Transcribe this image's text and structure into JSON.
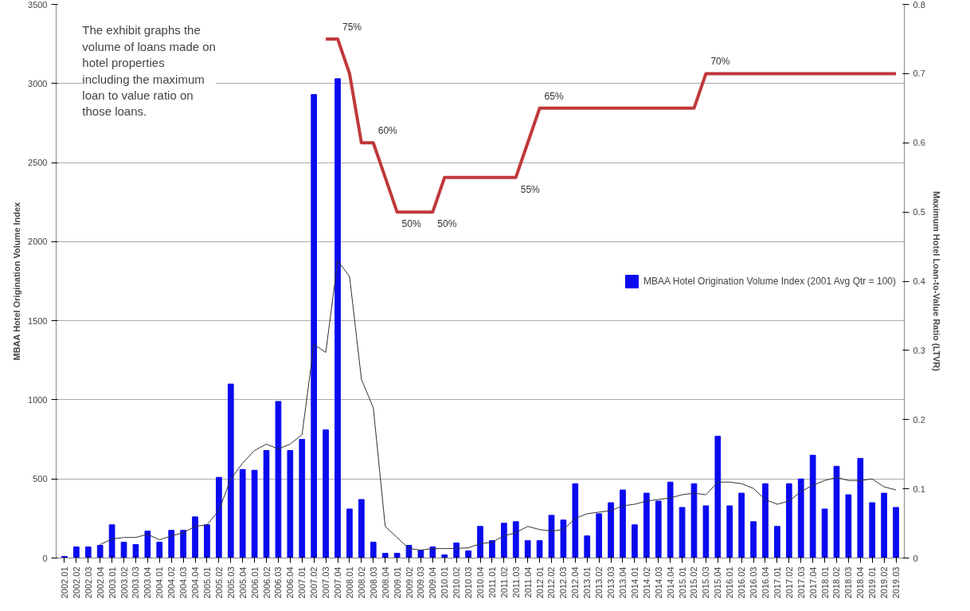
{
  "chart_data": {
    "type": "bar",
    "ylabel": "MBAA Hotel Origination Volume Index",
    "y2label": "Maximum Hotel Loan-to-Value Ratio (LTVR)",
    "categories": [
      "2002.01",
      "2002.02",
      "2002.03",
      "2002.04",
      "2003.01",
      "2003.02",
      "2003.03",
      "2003.04",
      "2004.01",
      "2004.02",
      "2004.03",
      "2004.04",
      "2005.01",
      "2005.02",
      "2005.03",
      "2005.04",
      "2006.01",
      "2006.02",
      "2006.03",
      "2006.04",
      "2007.01",
      "2007.02",
      "2007.03",
      "2007.04",
      "2008.01",
      "2008.02",
      "2008.03",
      "2008.04",
      "2009.01",
      "2009.02",
      "2009.03",
      "2009.04",
      "2010.01",
      "2010.02",
      "2010.03",
      "2010.04",
      "2011.01",
      "2011.02",
      "2011.03",
      "2011.04",
      "2012.01",
      "2012.02",
      "2012.03",
      "2012.04",
      "2013.01",
      "2013.02",
      "2013.03",
      "2013.04",
      "2014.01",
      "2014.02",
      "2014.03",
      "2014.04",
      "2015.01",
      "2015.02",
      "2015.03",
      "2015.04",
      "2016.01",
      "2016.02",
      "2016.03",
      "2016.04",
      "2017.01",
      "2017.02",
      "2017.03",
      "2017.04",
      "2018.01",
      "2018.02",
      "2018.03",
      "2018.04",
      "2019.01",
      "2019.02",
      "2019.03"
    ],
    "series": [
      {
        "name": "MBAA Hotel Origination Volume Index (2001 Avg Qtr = 100)",
        "color": "#0a0af0",
        "values": [
          10,
          70,
          70,
          80,
          210,
          100,
          85,
          170,
          100,
          175,
          175,
          260,
          210,
          510,
          1100,
          560,
          555,
          680,
          990,
          680,
          750,
          2930,
          810,
          3030,
          310,
          370,
          100,
          30,
          30,
          80,
          50,
          70,
          20,
          95,
          45,
          200,
          110,
          220,
          230,
          110,
          110,
          270,
          240,
          470,
          140,
          280,
          350,
          430,
          210,
          410,
          360,
          480,
          320,
          470,
          330,
          770,
          330,
          410,
          230,
          470,
          200,
          470,
          500,
          650,
          310,
          580,
          400,
          630,
          350,
          410,
          320
        ]
      },
      {
        "type": "line",
        "color": "#303030",
        "values": [
          null,
          null,
          null,
          85,
          120,
          130,
          130,
          150,
          115,
          140,
          160,
          200,
          210,
          300,
          500,
          600,
          680,
          720,
          690,
          720,
          780,
          1350,
          1300,
          1880,
          1780,
          1130,
          950,
          200,
          130,
          60,
          50,
          60,
          60,
          60,
          65,
          90,
          100,
          140,
          160,
          200,
          180,
          170,
          180,
          250,
          280,
          290,
          300,
          330,
          340,
          360,
          370,
          380,
          400,
          410,
          400,
          480,
          480,
          470,
          440,
          370,
          340,
          360,
          420,
          460,
          490,
          510,
          490,
          490,
          500,
          450,
          430
        ]
      },
      {
        "type": "line",
        "axis": "y2",
        "color": "#c0393b",
        "values": [
          null,
          null,
          null,
          null,
          null,
          null,
          null,
          null,
          null,
          null,
          null,
          null,
          null,
          null,
          null,
          null,
          null,
          null,
          null,
          null,
          null,
          null,
          0.75,
          0.75,
          0.7,
          0.6,
          0.6,
          0.55,
          0.5,
          0.5,
          0.5,
          0.5,
          0.55,
          0.55,
          0.55,
          0.55,
          0.55,
          0.55,
          0.55,
          0.6,
          0.65,
          0.65,
          0.65,
          0.65,
          0.65,
          0.65,
          0.65,
          0.65,
          0.65,
          0.65,
          0.65,
          0.65,
          0.65,
          0.65,
          0.7,
          0.7,
          0.7,
          0.7,
          0.7,
          0.7,
          0.7,
          0.7,
          0.7,
          0.7,
          0.7,
          0.7,
          0.7,
          0.7,
          0.7,
          0.7,
          0.7
        ],
        "value_labels": [
          null,
          null,
          null,
          null,
          null,
          null,
          null,
          null,
          null,
          null,
          null,
          null,
          null,
          null,
          null,
          null,
          null,
          null,
          null,
          null,
          null,
          null,
          null,
          "75%",
          null,
          null,
          "60%",
          null,
          "50%",
          null,
          null,
          "50%",
          null,
          null,
          null,
          null,
          null,
          null,
          "55%",
          null,
          "65%",
          null,
          null,
          null,
          null,
          null,
          null,
          null,
          null,
          null,
          null,
          null,
          null,
          null,
          "70%",
          null,
          null,
          null,
          null,
          null,
          null,
          null,
          null,
          null,
          null,
          null,
          null,
          null,
          null,
          null,
          null
        ]
      }
    ],
    "ylim": [
      0,
      3500
    ],
    "yticks": [
      0,
      500,
      1000,
      1500,
      2000,
      2500,
      3000,
      3500
    ],
    "y2lim": [
      0,
      0.8
    ],
    "y2ticks": [
      0,
      0.1,
      0.2,
      0.3,
      0.4,
      0.5,
      0.6,
      0.7,
      0.8
    ],
    "grid": "y",
    "legend": "right",
    "annotations": [
      "The exhibit graphs the volume of loans made on hotel properties including the maximum loan to value ratio on those loans."
    ]
  }
}
